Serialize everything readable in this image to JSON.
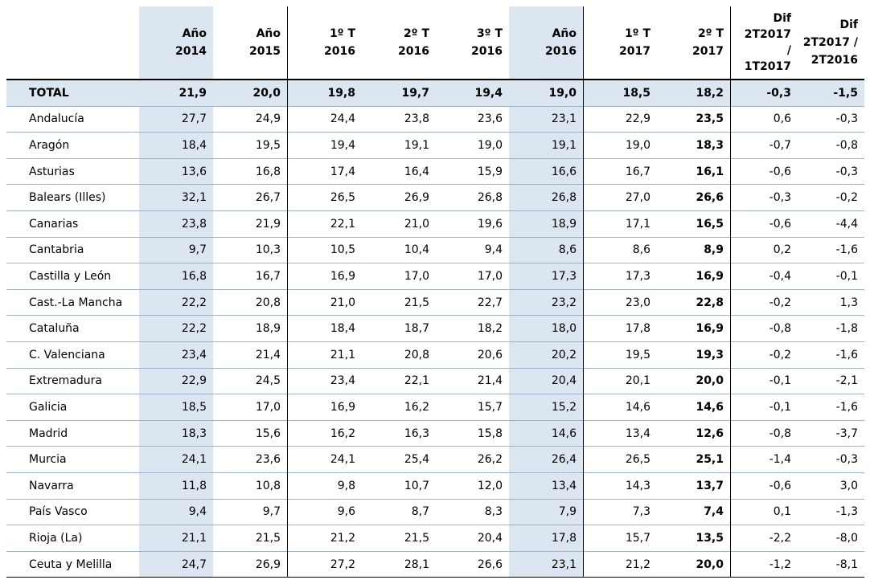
{
  "table": {
    "headers": [
      [
        "Año",
        "2014"
      ],
      [
        "Año",
        "2015"
      ],
      [
        "1º T",
        "2016"
      ],
      [
        "2º T",
        "2016"
      ],
      [
        "3º T",
        "2016"
      ],
      [
        "Año",
        "2016"
      ],
      [
        "1º T",
        "2017"
      ],
      [
        "2º T",
        "2017"
      ],
      [
        "Dif",
        "2T2017",
        "/",
        "1T2017"
      ],
      [
        "Dif",
        "2T2017 /",
        "2T2016"
      ]
    ],
    "rows": [
      [
        "TOTAL",
        "21,9",
        "20,0",
        "19,8",
        "19,7",
        "19,4",
        "19,0",
        "18,5",
        "18,2",
        "-0,3",
        "-1,5"
      ],
      [
        "Andalucía",
        "27,7",
        "24,9",
        "24,4",
        "23,8",
        "23,6",
        "23,1",
        "22,9",
        "23,5",
        "0,6",
        "-0,3"
      ],
      [
        "Aragón",
        "18,4",
        "19,5",
        "19,4",
        "19,1",
        "19,0",
        "19,1",
        "19,0",
        "18,3",
        "-0,7",
        "-0,8"
      ],
      [
        "Asturias",
        "13,6",
        "16,8",
        "17,4",
        "16,4",
        "15,9",
        "16,6",
        "16,7",
        "16,1",
        "-0,6",
        "-0,3"
      ],
      [
        "Balears (Illes)",
        "32,1",
        "26,7",
        "26,5",
        "26,9",
        "26,8",
        "26,8",
        "27,0",
        "26,6",
        "-0,3",
        "-0,2"
      ],
      [
        "Canarias",
        "23,8",
        "21,9",
        "22,1",
        "21,0",
        "19,6",
        "18,9",
        "17,1",
        "16,5",
        "-0,6",
        "-4,4"
      ],
      [
        "Cantabria",
        "9,7",
        "10,3",
        "10,5",
        "10,4",
        "9,4",
        "8,6",
        "8,6",
        "8,9",
        "0,2",
        "-1,6"
      ],
      [
        "Castilla y León",
        "16,8",
        "16,7",
        "16,9",
        "17,0",
        "17,0",
        "17,3",
        "17,3",
        "16,9",
        "-0,4",
        "-0,1"
      ],
      [
        "Cast.-La Mancha",
        "22,2",
        "20,8",
        "21,0",
        "21,5",
        "22,7",
        "23,2",
        "23,0",
        "22,8",
        "-0,2",
        "1,3"
      ],
      [
        "Cataluña",
        "22,2",
        "18,9",
        "18,4",
        "18,7",
        "18,2",
        "18,0",
        "17,8",
        "16,9",
        "-0,8",
        "-1,8"
      ],
      [
        "C. Valenciana",
        "23,4",
        "21,4",
        "21,1",
        "20,8",
        "20,6",
        "20,2",
        "19,5",
        "19,3",
        "-0,2",
        "-1,6"
      ],
      [
        "Extremadura",
        "22,9",
        "24,5",
        "23,4",
        "22,1",
        "21,4",
        "20,4",
        "20,1",
        "20,0",
        "-0,1",
        "-2,1"
      ],
      [
        "Galicia",
        "18,5",
        "17,0",
        "16,9",
        "16,2",
        "15,7",
        "15,2",
        "14,6",
        "14,6",
        "-0,1",
        "-1,6"
      ],
      [
        "Madrid",
        "18,3",
        "15,6",
        "16,2",
        "16,3",
        "15,8",
        "14,6",
        "13,4",
        "12,6",
        "-0,8",
        "-3,7"
      ],
      [
        "Murcia",
        "24,1",
        "23,6",
        "24,1",
        "25,4",
        "26,2",
        "26,4",
        "26,5",
        "25,1",
        "-1,4",
        "-0,3"
      ],
      [
        "Navarra",
        "11,8",
        "10,8",
        "9,8",
        "10,7",
        "12,0",
        "13,4",
        "14,3",
        "13,7",
        "-0,6",
        "3,0"
      ],
      [
        "País Vasco",
        "9,4",
        "9,7",
        "9,6",
        "8,7",
        "8,3",
        "7,9",
        "7,3",
        "7,4",
        "0,1",
        "-1,3"
      ],
      [
        "Rioja (La)",
        "21,1",
        "21,5",
        "21,2",
        "21,5",
        "20,4",
        "17,8",
        "15,7",
        "13,5",
        "-2,2",
        "-8,0"
      ],
      [
        "Ceuta y Melilla",
        "24,7",
        "26,9",
        "27,2",
        "28,1",
        "26,6",
        "23,1",
        "21,2",
        "20,0",
        "-1,2",
        "-8,1"
      ]
    ]
  }
}
